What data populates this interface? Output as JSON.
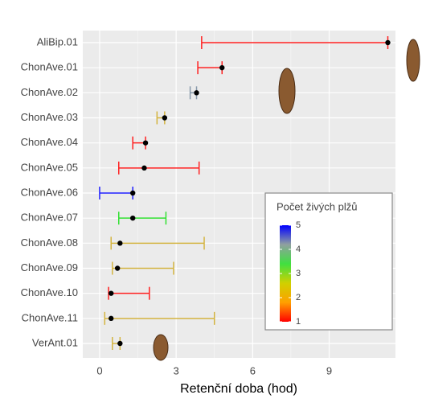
{
  "chart_data": {
    "type": "errorbar",
    "xlabel": "Retenční doba (hod)",
    "categories": [
      "AliBip.01",
      "ChonAve.01",
      "ChonAve.02",
      "ChonAve.03",
      "ChonAve.04",
      "ChonAve.05",
      "ChonAve.06",
      "ChonAve.07",
      "ChonAve.08",
      "ChonAve.09",
      "ChonAve.10",
      "ChonAve.11",
      "VerAnt.01"
    ],
    "values": [
      11.3,
      4.8,
      3.8,
      2.55,
      1.8,
      1.75,
      1.3,
      1.3,
      0.8,
      0.7,
      0.45,
      0.45,
      0.8
    ],
    "lower": [
      4.0,
      3.85,
      3.55,
      2.25,
      1.3,
      0.75,
      0.0,
      0.75,
      0.45,
      0.5,
      0.35,
      0.2,
      0.5
    ],
    "upper": [
      11.3,
      4.8,
      3.8,
      2.55,
      1.8,
      3.9,
      1.3,
      2.6,
      4.1,
      2.9,
      1.95,
      4.5,
      0.8
    ],
    "colors": [
      "#ff2020",
      "#ff2020",
      "#8899aa",
      "#d4b440",
      "#ff2020",
      "#ff2020",
      "#2020ff",
      "#30e030",
      "#d4b440",
      "#d4b440",
      "#ff2020",
      "#d4b440",
      "#d4b440"
    ],
    "xlim": [
      -0.66,
      11.6
    ],
    "xticks": [
      0,
      3,
      6,
      9
    ],
    "grid": true,
    "legend": {
      "title": "Počet živých plžů",
      "ticks": [
        1,
        2,
        3,
        4,
        5
      ],
      "lim": [
        1,
        5
      ],
      "colors": [
        "#ff0000",
        "#ffa000",
        "#d0d000",
        "#40e040",
        "#90a0a0",
        "#0000ff"
      ]
    }
  }
}
